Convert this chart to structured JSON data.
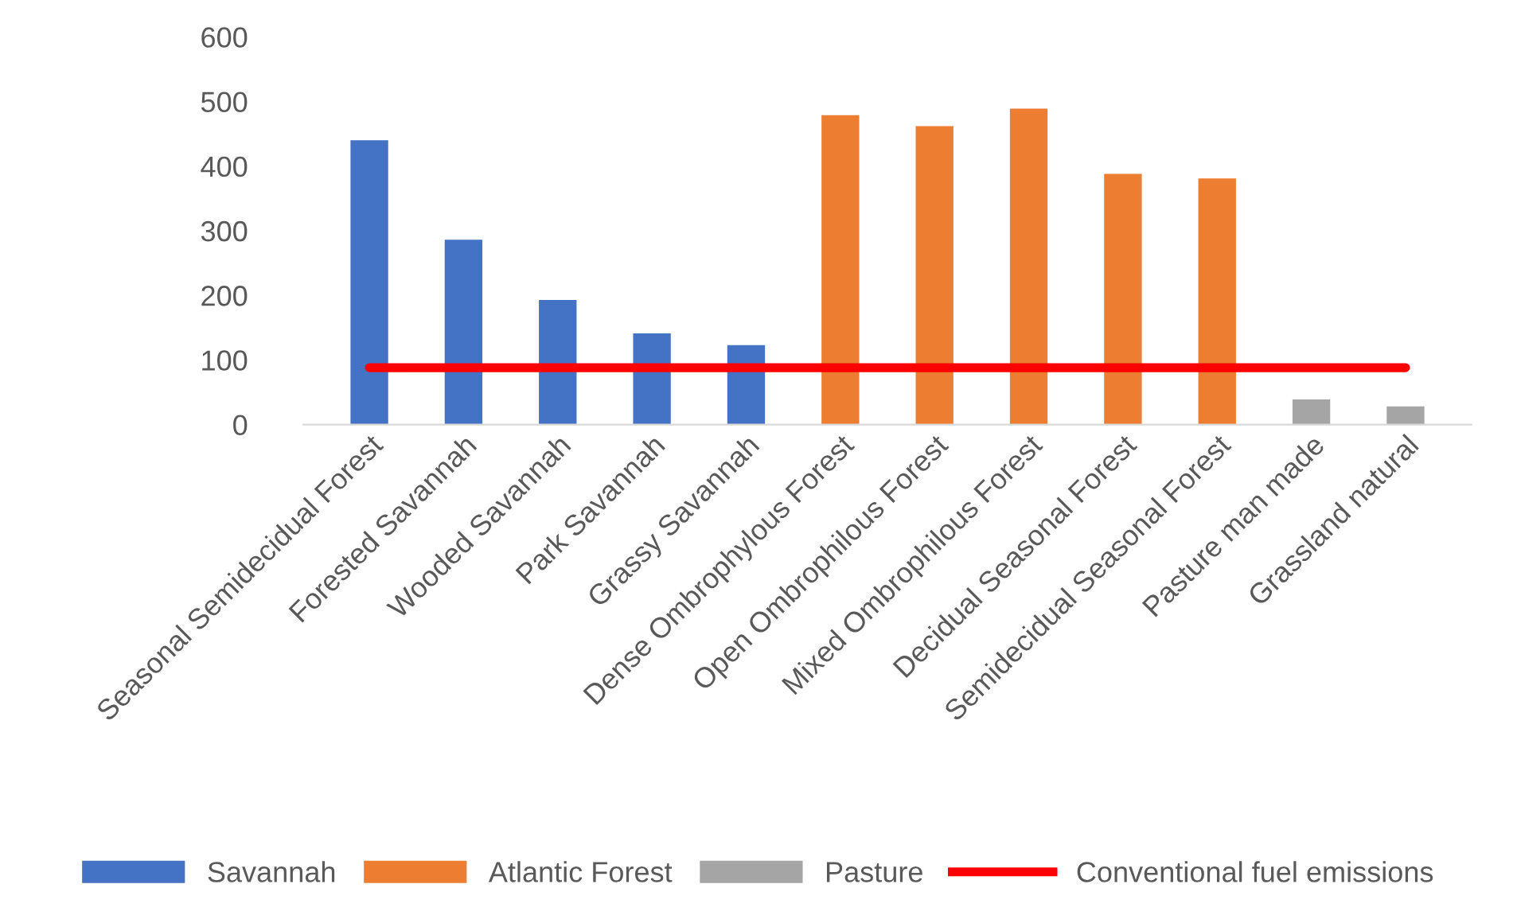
{
  "chart_data": {
    "type": "bar",
    "categories": [
      "Seasonal Semidecidual Forest",
      "Forested Savannah",
      "Wooded Savannah",
      "Park Savannah",
      "Grassy Savannah",
      "Dense Ombrophylous Forest",
      "Open Ombrophilous Forest",
      "Mixed Ombrophilous Forest",
      "Decidual Seasonal Forest",
      "Semidecidual Seasonal Forest",
      "Pasture man made",
      "Grassland natural"
    ],
    "series": [
      {
        "name": "Savannah",
        "color": "#4472c4",
        "values": [
          440,
          286,
          193,
          141,
          123,
          null,
          null,
          null,
          null,
          null,
          null,
          null
        ]
      },
      {
        "name": "Atlantic Forest",
        "color": "#ed7d31",
        "values": [
          null,
          null,
          null,
          null,
          null,
          479,
          462,
          489,
          388,
          381,
          null,
          null
        ]
      },
      {
        "name": "Pasture",
        "color": "#a5a5a5",
        "values": [
          null,
          null,
          null,
          null,
          null,
          null,
          null,
          null,
          null,
          null,
          39,
          28
        ]
      },
      {
        "name": "Conventional fuel emissions",
        "type": "line",
        "color": "#ff0000",
        "values": [
          88,
          88,
          88,
          88,
          88,
          88,
          88,
          88,
          88,
          88,
          88,
          88
        ]
      }
    ],
    "ylim": [
      0,
      600
    ],
    "yticks": [
      0,
      100,
      200,
      300,
      400,
      500,
      600
    ],
    "grid": false,
    "legend": "bottom",
    "marker": "none",
    "line_style": "solid"
  }
}
